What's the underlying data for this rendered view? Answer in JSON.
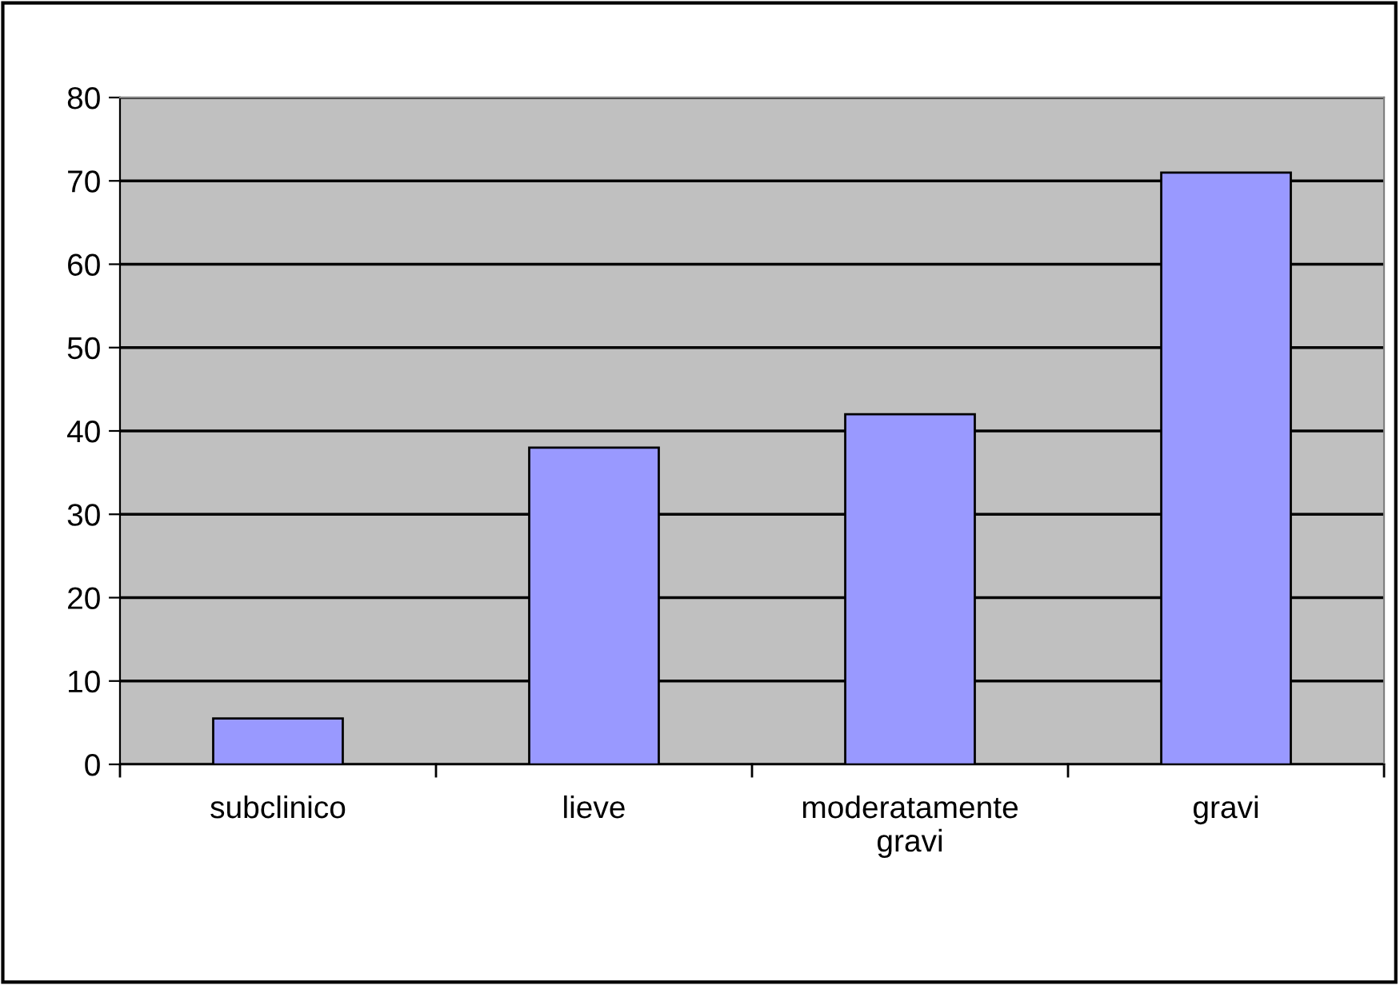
{
  "chart_data": {
    "type": "bar",
    "categories": [
      "subclinico",
      "lieve",
      "moderatamente gravi",
      "gravi"
    ],
    "values": [
      5.5,
      38,
      42,
      71
    ],
    "color": "#9999ff",
    "ylim": [
      0,
      80
    ],
    "yticks": [
      0,
      10,
      20,
      30,
      40,
      50,
      60,
      70,
      80
    ],
    "grid": "y",
    "legend": false
  }
}
